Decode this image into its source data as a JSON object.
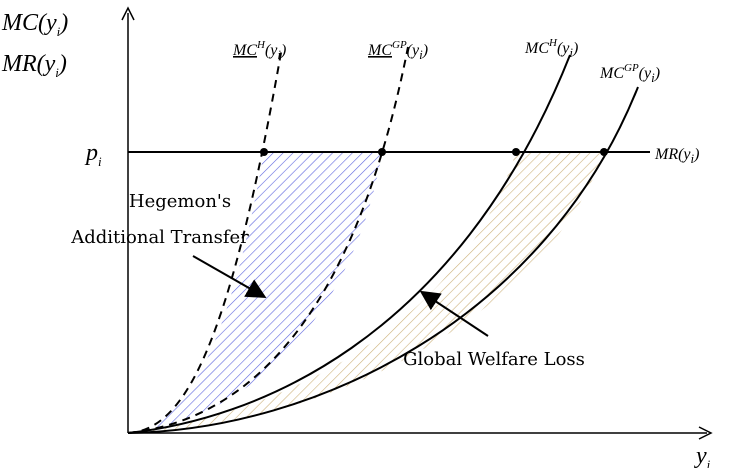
{
  "axes": {
    "y_label_line1": "MC(yi)",
    "y_label_line2": "MR(yi)",
    "x_label": "yi"
  },
  "marks": {
    "price_label": "pi",
    "mr_label": "MR(yi)"
  },
  "curves": {
    "mc_h_under_label": "MCH(yi)",
    "mc_gp_under_label": "MCGP(yi)",
    "mc_h_label": "MCH(yi)",
    "mc_gp_label": "MCGP(yi)"
  },
  "annotations": {
    "hegemon_line1": "Hegemon's",
    "hegemon_line2": "Additional Transfer",
    "global_loss": "Global Welfare Loss"
  },
  "colors": {
    "blue_hatch": "#5f66df",
    "tan_hatch": "#cdb27d",
    "line": "#000000"
  }
}
